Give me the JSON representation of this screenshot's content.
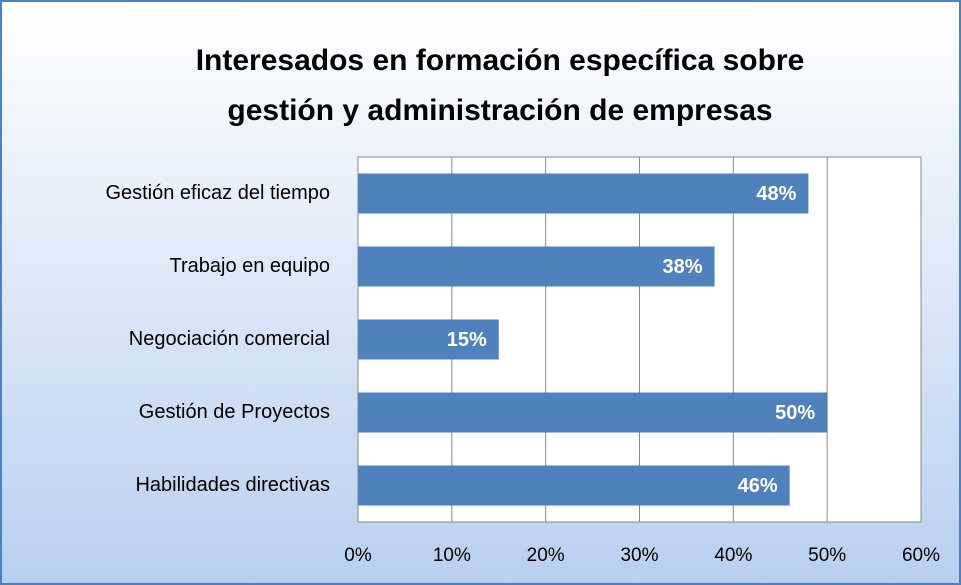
{
  "chart_data": {
    "type": "bar",
    "orientation": "horizontal",
    "title": "Interesados en formación específica sobre gestión y administración de empresas",
    "categories": [
      "Gestión eficaz del tiempo",
      "Trabajo en equipo",
      "Negociación comercial",
      "Gestión de Proyectos",
      "Habilidades directivas"
    ],
    "values": [
      48,
      38,
      15,
      50,
      46
    ],
    "value_labels": [
      "48%",
      "38%",
      "15%",
      "50%",
      "46%"
    ],
    "color": "#4f81bd",
    "xlim": [
      0,
      60
    ],
    "xticks": [
      {
        "value": 0,
        "label": "0%"
      },
      {
        "value": 10,
        "label": "10%"
      },
      {
        "value": 20,
        "label": "20%"
      },
      {
        "value": 30,
        "label": "30%"
      },
      {
        "value": 40,
        "label": "40%"
      },
      {
        "value": 50,
        "label": "50%"
      },
      {
        "value": 60,
        "label": "60%"
      }
    ],
    "grid": true
  }
}
